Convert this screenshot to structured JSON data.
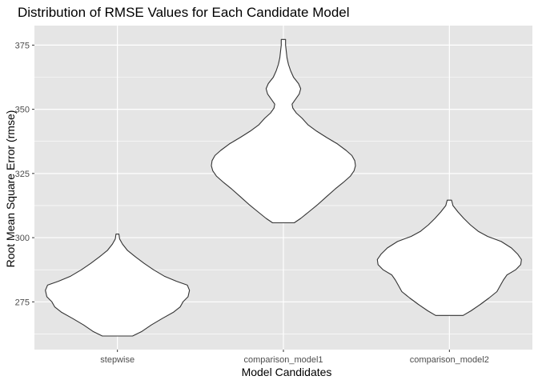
{
  "chart_data": {
    "type": "violin",
    "title": "Distribution of RMSE Values for Each Candidate Model",
    "xlabel": "Model Candidates",
    "ylabel": "Root Mean Square Error (rmse)",
    "categories": [
      "stepwise",
      "comparison_model1",
      "comparison_model2"
    ],
    "y_ticks": [
      275,
      300,
      325,
      350,
      375
    ],
    "ylim": [
      256.4,
      382.6
    ],
    "grid": true,
    "colors": {
      "panel": "#e5e5e5",
      "grid": "#ffffff",
      "violin_fill": "#ffffff",
      "violin_stroke": "#333333"
    },
    "series": [
      {
        "category": "stepwise",
        "min": 261.7,
        "max": 301.4,
        "density_profile": [
          [
            261.7,
            0.21
          ],
          [
            263.5,
            0.34
          ],
          [
            266.0,
            0.47
          ],
          [
            268.5,
            0.62
          ],
          [
            271.0,
            0.78
          ],
          [
            273.0,
            0.87
          ],
          [
            275.0,
            0.91
          ],
          [
            277.0,
            0.98
          ],
          [
            279.5,
            1.0
          ],
          [
            281.5,
            0.97
          ],
          [
            283.0,
            0.82
          ],
          [
            285.0,
            0.65
          ],
          [
            287.5,
            0.5
          ],
          [
            290.0,
            0.37
          ],
          [
            292.5,
            0.25
          ],
          [
            295.0,
            0.14
          ],
          [
            297.5,
            0.07
          ],
          [
            299.5,
            0.03
          ],
          [
            301.4,
            0.02
          ]
        ]
      },
      {
        "category": "comparison_model1",
        "min": 305.8,
        "max": 377.2,
        "density_profile": [
          [
            305.8,
            0.15
          ],
          [
            307.5,
            0.24
          ],
          [
            310.0,
            0.35
          ],
          [
            313.0,
            0.48
          ],
          [
            316.0,
            0.6
          ],
          [
            319.0,
            0.72
          ],
          [
            321.5,
            0.83
          ],
          [
            324.0,
            0.93
          ],
          [
            326.0,
            0.98
          ],
          [
            328.0,
            1.0
          ],
          [
            330.0,
            0.99
          ],
          [
            332.0,
            0.95
          ],
          [
            334.0,
            0.87
          ],
          [
            336.5,
            0.75
          ],
          [
            339.0,
            0.6
          ],
          [
            341.5,
            0.46
          ],
          [
            344.0,
            0.34
          ],
          [
            346.5,
            0.26
          ],
          [
            348.5,
            0.18
          ],
          [
            350.5,
            0.13
          ],
          [
            352.0,
            0.12
          ],
          [
            354.0,
            0.17
          ],
          [
            356.0,
            0.22
          ],
          [
            358.0,
            0.24
          ],
          [
            360.0,
            0.21
          ],
          [
            362.5,
            0.14
          ],
          [
            365.0,
            0.1
          ],
          [
            367.5,
            0.07
          ],
          [
            370.0,
            0.05
          ],
          [
            372.5,
            0.04
          ],
          [
            375.0,
            0.03
          ],
          [
            377.2,
            0.03
          ]
        ]
      },
      {
        "category": "comparison_model2",
        "min": 269.7,
        "max": 314.6,
        "density_profile": [
          [
            269.7,
            0.19
          ],
          [
            271.5,
            0.3
          ],
          [
            274.0,
            0.43
          ],
          [
            276.5,
            0.55
          ],
          [
            279.0,
            0.66
          ],
          [
            281.5,
            0.71
          ],
          [
            283.5,
            0.75
          ],
          [
            285.5,
            0.8
          ],
          [
            287.5,
            0.92
          ],
          [
            289.5,
            0.99
          ],
          [
            291.5,
            1.0
          ],
          [
            293.5,
            0.95
          ],
          [
            296.0,
            0.86
          ],
          [
            298.5,
            0.72
          ],
          [
            300.5,
            0.53
          ],
          [
            302.5,
            0.4
          ],
          [
            305.0,
            0.29
          ],
          [
            307.5,
            0.2
          ],
          [
            310.0,
            0.12
          ],
          [
            312.5,
            0.05
          ],
          [
            314.6,
            0.03
          ]
        ]
      }
    ]
  }
}
